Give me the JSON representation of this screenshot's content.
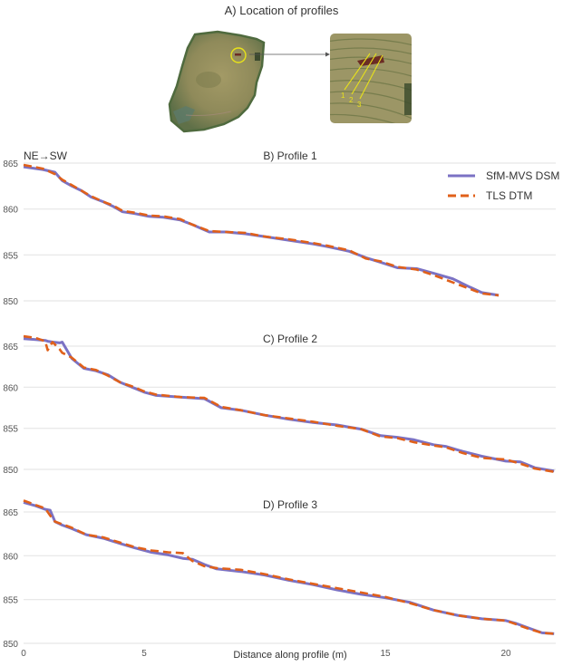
{
  "figure": {
    "panel_a_title": "A) Location of profiles",
    "direction_label": "NE→SW",
    "x_axis_label": "Distance along profile (m)",
    "inset_profile_labels": [
      "1",
      "2",
      "3"
    ],
    "colors": {
      "sfm": "#7b72c4",
      "tls": "#e0601a",
      "grid": "#e6e6e6",
      "highlight_circle": "#e8e21a",
      "profile_lines": "#e8e21a"
    }
  },
  "legend": {
    "items": [
      {
        "label": "SfM-MVS DSM",
        "style": "solid",
        "color": "#7b72c4"
      },
      {
        "label": "TLS DTM",
        "style": "dashed",
        "color": "#e0601a"
      }
    ]
  },
  "chart_data": [
    {
      "type": "line",
      "title": "B) Profile 1",
      "xlabel": "Distance along profile (m)",
      "ylabel": "",
      "xlim": [
        0,
        22
      ],
      "ylim": [
        850,
        865
      ],
      "yticks": [
        850,
        855,
        860,
        865
      ],
      "xticks": [
        0,
        5,
        15,
        20
      ],
      "grid": true,
      "legend_position": "upper right",
      "x": [
        0,
        0.8,
        1.3,
        1.6,
        2.0,
        2.4,
        2.8,
        3.3,
        3.7,
        4.1,
        4.6,
        5.2,
        5.8,
        6.5,
        7.0,
        7.7,
        8.4,
        9.2,
        10.0,
        11.0,
        12.0,
        12.6,
        13.5,
        14.2,
        14.8,
        15.5,
        16.3,
        17.0,
        17.8,
        18.5,
        19.0,
        19.7
      ],
      "series": [
        {
          "name": "SfM-MVS DSM",
          "values": [
            864.6,
            864.3,
            864.0,
            863.1,
            862.5,
            862.0,
            861.3,
            860.8,
            860.3,
            859.7,
            859.5,
            859.2,
            859.1,
            858.8,
            858.3,
            857.5,
            857.5,
            857.3,
            857.0,
            856.6,
            856.2,
            855.9,
            855.4,
            854.7,
            854.2,
            853.6,
            853.5,
            853.0,
            852.4,
            851.5,
            850.9,
            850.6
          ]
        },
        {
          "name": "TLS DTM",
          "values": [
            864.8,
            864.4,
            863.8,
            863.2,
            862.6,
            862.0,
            861.4,
            860.8,
            860.4,
            859.8,
            859.6,
            859.3,
            859.2,
            858.9,
            858.3,
            857.6,
            857.5,
            857.4,
            857.0,
            856.7,
            856.3,
            856.0,
            855.5,
            854.6,
            854.3,
            853.7,
            853.4,
            852.8,
            852.0,
            851.3,
            850.8,
            850.6
          ]
        }
      ]
    },
    {
      "type": "line",
      "title": "C) Profile 2",
      "xlabel": "Distance along profile (m)",
      "ylabel": "",
      "xlim": [
        0,
        22
      ],
      "ylim": [
        850,
        865
      ],
      "yticks": [
        850,
        855,
        860,
        865
      ],
      "grid": true,
      "x": [
        0,
        0.5,
        0.9,
        1.0,
        1.2,
        1.5,
        1.6,
        2.0,
        2.5,
        3.0,
        3.5,
        4.0,
        4.5,
        5.0,
        5.5,
        6.5,
        7.5,
        8.2,
        9.0,
        10.0,
        11.0,
        12.0,
        13.0,
        14.0,
        14.8,
        15.5,
        16.2,
        17.0,
        17.5,
        18.2,
        19.0,
        20.0,
        20.6,
        21.2,
        22.0
      ],
      "series": [
        {
          "name": "SfM-MVS DSM",
          "values": [
            865.9,
            865.8,
            865.7,
            865.6,
            865.5,
            865.4,
            865.5,
            863.5,
            862.3,
            862.0,
            861.5,
            860.6,
            860.0,
            859.4,
            859.0,
            858.8,
            858.6,
            857.5,
            857.2,
            856.6,
            856.1,
            855.7,
            855.4,
            854.9,
            854.1,
            853.9,
            853.6,
            853.0,
            852.8,
            852.2,
            851.6,
            851.0,
            850.9,
            850.2,
            849.8
          ]
        },
        {
          "name": "TLS DTM",
          "values": [
            866.2,
            866.0,
            865.6,
            864.5,
            865.5,
            864.6,
            864.2,
            863.6,
            862.4,
            862.1,
            861.4,
            860.6,
            860.1,
            859.5,
            859.1,
            858.8,
            858.7,
            857.6,
            857.2,
            856.6,
            856.2,
            855.8,
            855.3,
            854.9,
            854.0,
            853.8,
            853.3,
            852.9,
            852.7,
            852.0,
            851.4,
            851.2,
            850.7,
            850.1,
            849.7
          ]
        }
      ]
    },
    {
      "type": "line",
      "title": "D) Profile 3",
      "xlabel": "Distance along profile (m)",
      "ylabel": "",
      "xlim": [
        0,
        22
      ],
      "ylim": [
        850,
        865
      ],
      "yticks": [
        850,
        855,
        860,
        865
      ],
      "xticks": [
        0,
        5,
        15,
        20
      ],
      "grid": true,
      "x": [
        0,
        0.5,
        0.9,
        1.1,
        1.3,
        1.6,
        2.0,
        2.6,
        3.3,
        4.0,
        4.6,
        5.3,
        6.0,
        6.6,
        7.0,
        7.5,
        8.0,
        9.0,
        10.0,
        11.0,
        12.0,
        13.0,
        14.0,
        15.0,
        16.0,
        17.0,
        18.0,
        19.0,
        20.0,
        20.4,
        21.0,
        21.5,
        22.0
      ],
      "series": [
        {
          "name": "SfM-MVS DSM",
          "values": [
            866.1,
            865.7,
            865.3,
            865.2,
            863.9,
            863.5,
            863.1,
            862.4,
            862.0,
            861.4,
            860.9,
            860.4,
            860.1,
            859.7,
            859.6,
            859.0,
            858.5,
            858.2,
            857.8,
            857.2,
            856.7,
            856.1,
            855.6,
            855.2,
            854.7,
            853.8,
            853.2,
            852.8,
            852.6,
            852.3,
            851.7,
            851.2,
            851.1
          ]
        },
        {
          "name": "TLS DTM",
          "values": [
            866.3,
            865.8,
            865.4,
            864.6,
            863.9,
            863.6,
            863.2,
            862.4,
            862.1,
            861.5,
            861.0,
            860.6,
            860.4,
            860.3,
            859.4,
            858.8,
            858.6,
            858.4,
            857.9,
            857.3,
            856.8,
            856.3,
            855.8,
            855.3,
            854.6,
            853.8,
            853.2,
            852.8,
            852.6,
            852.2,
            851.6,
            851.2,
            851.1
          ]
        }
      ]
    }
  ]
}
